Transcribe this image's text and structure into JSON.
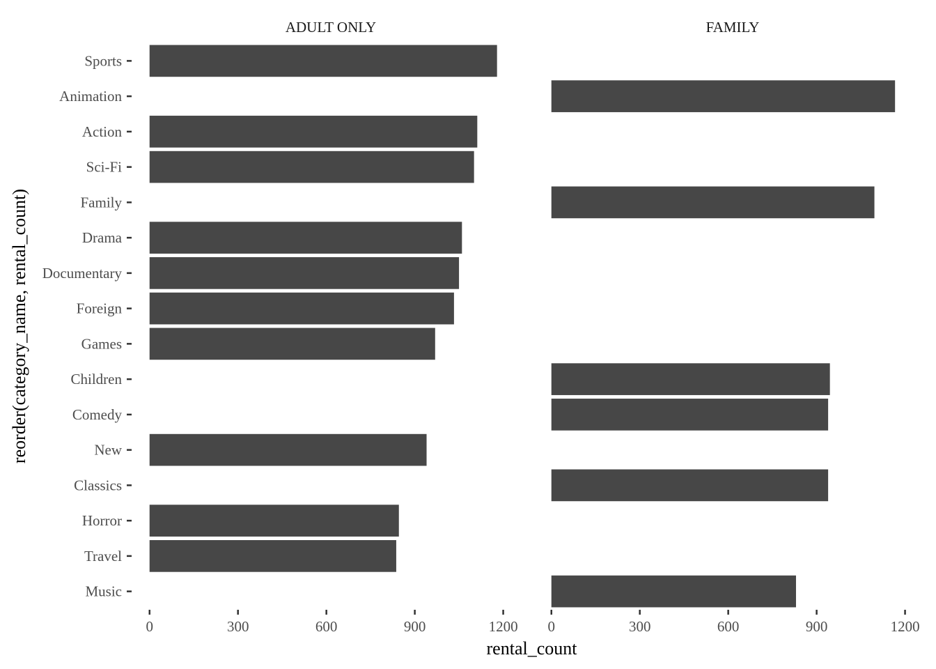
{
  "chart_data": {
    "type": "bar",
    "orientation": "horizontal",
    "facets": [
      "ADULT ONLY",
      "FAMILY"
    ],
    "categories": [
      "Sports",
      "Animation",
      "Action",
      "Sci-Fi",
      "Family",
      "Drama",
      "Documentary",
      "Foreign",
      "Games",
      "Children",
      "Comedy",
      "New",
      "Classics",
      "Horror",
      "Travel",
      "Music"
    ],
    "series": [
      {
        "facet": "ADULT ONLY",
        "values": [
          1179,
          null,
          1112,
          1101,
          null,
          1060,
          1050,
          1033,
          969,
          null,
          null,
          940,
          null,
          846,
          837,
          null
        ]
      },
      {
        "facet": "FAMILY",
        "values": [
          null,
          1166,
          null,
          null,
          1096,
          null,
          null,
          null,
          null,
          945,
          939,
          null,
          939,
          null,
          null,
          830
        ]
      }
    ],
    "xlabel": "rental_count",
    "ylabel": "reorder(category_name, rental_count)",
    "xlim": [
      0,
      1230
    ],
    "xticks": [
      0,
      300,
      600,
      900,
      1200
    ],
    "grid": false,
    "bar_color": "#474747"
  }
}
